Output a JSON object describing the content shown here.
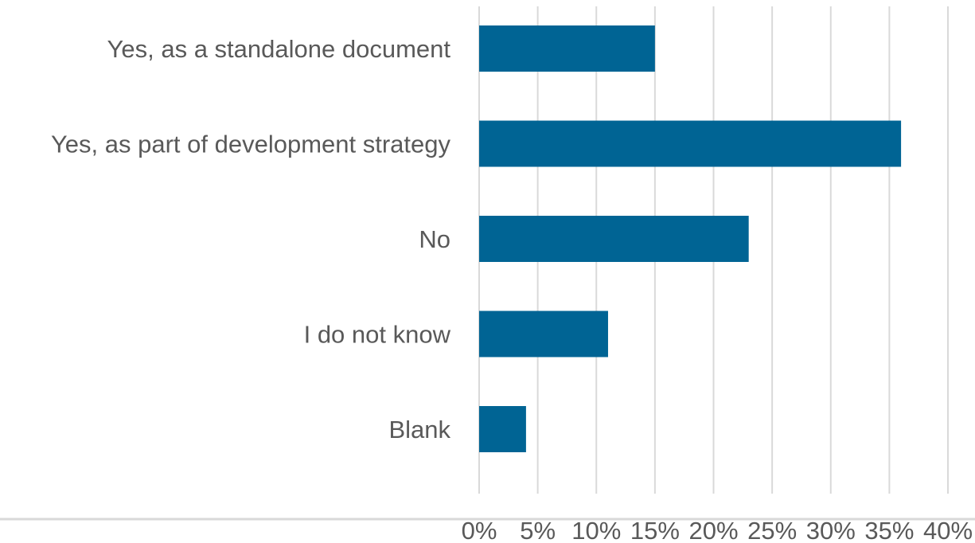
{
  "chart_data": {
    "type": "bar",
    "orientation": "horizontal",
    "categories": [
      "Yes, as a standalone document",
      "Yes, as part of development strategy",
      "No",
      "I do not know",
      "Blank"
    ],
    "values": [
      0.15,
      0.36,
      0.23,
      0.11,
      0.04
    ],
    "xlim": [
      0,
      0.4
    ],
    "xticks": [
      0,
      0.05,
      0.1,
      0.15,
      0.2,
      0.25,
      0.3,
      0.35,
      0.4
    ],
    "xtick_labels": [
      "0%",
      "5%",
      "10%",
      "15%",
      "20%",
      "25%",
      "30%",
      "35%",
      "40%"
    ],
    "title": "",
    "xlabel": "",
    "ylabel": "",
    "grid": true,
    "legend": "none",
    "bar_color": "#006494",
    "grid_color": "#d9d9d9",
    "text_color": "#595959"
  }
}
